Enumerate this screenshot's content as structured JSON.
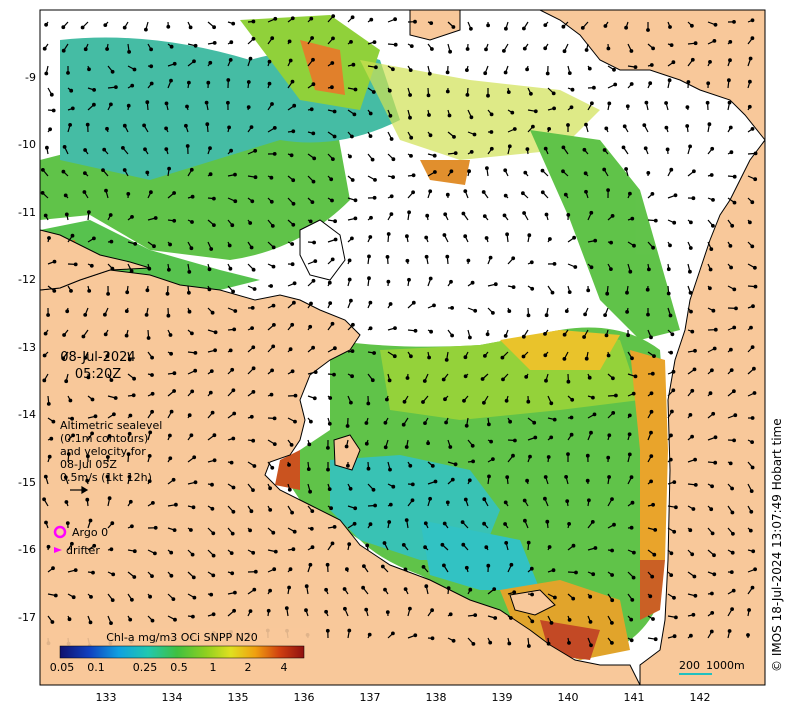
{
  "map": {
    "date": "08-Jul-2024",
    "time": "05:20Z",
    "sealevel_note": [
      "Altimetric sealevel",
      "(0.1m contours)",
      "and velocity for",
      "08-Jul 05Z",
      "0.5m/s (1kt 12h)"
    ],
    "legend": {
      "argo_label": "Argo 0",
      "drifter_label": "drifter"
    },
    "colorbar": {
      "title": "Chl-a mg/m3 OCi SNPP N20",
      "labels": [
        "0.05",
        "0.1",
        "0.25",
        "0.5",
        "1",
        "2",
        "4"
      ]
    },
    "scale_bar": {
      "labels": [
        "200",
        "1000m"
      ]
    },
    "credit": "© IMOS 18-Jul-2024 13:07:49 Hobart time",
    "lon_ticks": [
      "133",
      "134",
      "135",
      "136",
      "137",
      "138",
      "139",
      "140",
      "141",
      "142"
    ],
    "lat_ticks": [
      "-9",
      "-10",
      "-11",
      "-12",
      "-13",
      "-14",
      "-15",
      "-16",
      "-17"
    ],
    "colors": {
      "land": "#f8c89a",
      "ocean": "#ffffff",
      "argo": "#ff00ff",
      "scale_bar": "#20c0c0"
    }
  }
}
